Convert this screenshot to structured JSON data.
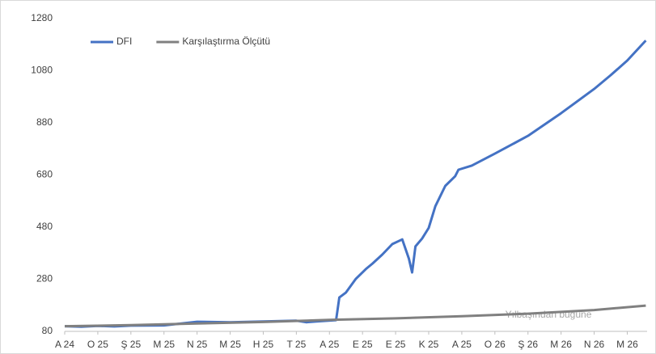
{
  "chart_data": {
    "type": "line",
    "xticks": [
      {
        "value": 0,
        "label": "A 24"
      },
      {
        "value": 1,
        "label": "O 25"
      },
      {
        "value": 2,
        "label": "Ş 25"
      },
      {
        "value": 3,
        "label": "M 25"
      },
      {
        "value": 4,
        "label": "N 25"
      },
      {
        "value": 5,
        "label": "M 25"
      },
      {
        "value": 6,
        "label": "H 25"
      },
      {
        "value": 7,
        "label": "T 25"
      },
      {
        "value": 8,
        "label": "A 25"
      },
      {
        "value": 9,
        "label": "E 25"
      },
      {
        "value": 10,
        "label": "E 25"
      },
      {
        "value": 11,
        "label": "K 25"
      },
      {
        "value": 12,
        "label": "A 25"
      },
      {
        "value": 13,
        "label": "O 26"
      },
      {
        "value": 14,
        "label": "Ş 26"
      },
      {
        "value": 15,
        "label": "M 26"
      },
      {
        "value": 16,
        "label": "N 26"
      },
      {
        "value": 17,
        "label": "M 26"
      }
    ],
    "xlim": [
      0,
      17.6
    ],
    "ylim": [
      80,
      1280
    ],
    "yticks": [
      80,
      280,
      480,
      680,
      880,
      1080,
      1280
    ],
    "grid": false,
    "legend": "top-left",
    "annotation": "Yılbaşından bugüne",
    "series": [
      {
        "name": "DFI",
        "color": "#4472c4",
        "x": [
          0,
          0.5,
          1,
          1.5,
          2,
          3,
          4,
          5,
          6,
          7,
          7.3,
          7.6,
          8.2,
          8.3,
          8.5,
          8.8,
          9.1,
          9.3,
          9.6,
          9.9,
          10.2,
          10.4,
          10.5,
          10.6,
          10.8,
          11.0,
          11.2,
          11.5,
          11.8,
          11.9,
          12.3,
          13,
          14,
          15,
          16,
          16.5,
          17,
          17.56
        ],
        "values": [
          100,
          98,
          101,
          99,
          102,
          103,
          117,
          115,
          118,
          121,
          115,
          118,
          123,
          210,
          229,
          282,
          319,
          340,
          375,
          415,
          433,
          359,
          306,
          406,
          436,
          477,
          560,
          638,
          675,
          700,
          716,
          762,
          830,
          917,
          1010,
          1063,
          1119,
          1196
        ]
      },
      {
        "name": "Karşılaştırma Ölçütü",
        "color": "#808080",
        "x": [
          0,
          2,
          4,
          6,
          8,
          10,
          12,
          14,
          16,
          17.56
        ],
        "values": [
          100,
          104,
          110,
          116,
          124,
          130,
          138,
          148,
          162,
          179
        ]
      }
    ]
  }
}
